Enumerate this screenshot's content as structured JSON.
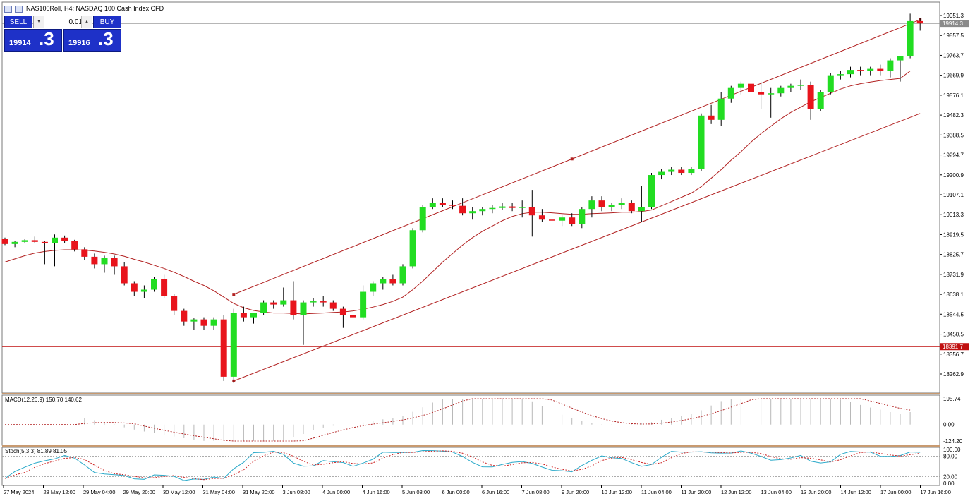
{
  "window": {
    "title": "NAS100Roll, H4:  NASDAQ 100 Cash Index CFD",
    "icons": [
      "chart-window-icon",
      "chart-grid-icon"
    ]
  },
  "trade_panel": {
    "sell_label": "SELL",
    "buy_label": "BUY",
    "lot_value": "0.01",
    "dec_glyph": "▾",
    "inc_glyph": "▴",
    "sell_price_main": "19914",
    "sell_price_big": ".3",
    "buy_price_main": "19916",
    "buy_price_big": ".3",
    "panel_color": "#1e31c8"
  },
  "price_axis": {
    "labels": [
      "19951.3",
      "19857.5",
      "19763.7",
      "19669.9",
      "19576.1",
      "19482.3",
      "19388.5",
      "19294.7",
      "19200.9",
      "19107.1",
      "19013.3",
      "18919.5",
      "18825.7",
      "18731.9",
      "18638.1",
      "18544.5",
      "18450.5",
      "18356.7",
      "18262.9"
    ],
    "current_price": "19914.3",
    "hline_price": "18391.7"
  },
  "time_axis": {
    "labels": [
      "27 May 2024",
      "28 May 12:00",
      "29 May 04:00",
      "29 May 20:00",
      "30 May 12:00",
      "31 May 04:00",
      "31 May 20:00",
      "3 Jun 08:00",
      "4 Jun 00:00",
      "4 Jun 16:00",
      "5 Jun 08:00",
      "6 Jun 00:00",
      "6 Jun 16:00",
      "7 Jun 08:00",
      "9 Jun 20:00",
      "10 Jun 12:00",
      "11 Jun 04:00",
      "11 Jun 20:00",
      "12 Jun 12:00",
      "13 Jun 04:00",
      "13 Jun 20:00",
      "14 Jun 12:00",
      "17 Jun 00:00",
      "17 Jun 16:00"
    ]
  },
  "macd": {
    "label": "MACD(12,26,9) 150.70 140.62",
    "scale_labels": [
      "195.74",
      "0.00",
      "-124.20"
    ]
  },
  "stoch": {
    "label": "Stoch(5,3,3) 81.89 81.05",
    "scale_labels": [
      "100.00",
      "80.00",
      "20.00",
      "0.00"
    ]
  },
  "colors": {
    "bull": "#22dd22",
    "bear": "#e8141c",
    "ma": "#b22222",
    "channel": "#b22222",
    "stoch_main": "#2aa9c9",
    "stoch_signal": "#cc2222",
    "macd_signal": "#b22222",
    "hist": "#b8b8b8"
  },
  "chart_data": {
    "type": "candlestick",
    "symbol": "NAS100Roll",
    "timeframe": "H4",
    "candles": [
      [
        18900,
        18905,
        18870,
        18875
      ],
      [
        18875,
        18890,
        18860,
        18885
      ],
      [
        18885,
        18900,
        18880,
        18893
      ],
      [
        18893,
        18910,
        18880,
        18885
      ],
      [
        18885,
        18890,
        18780,
        18880
      ],
      [
        18880,
        18920,
        18770,
        18905
      ],
      [
        18905,
        18915,
        18880,
        18890
      ],
      [
        18890,
        18895,
        18840,
        18850
      ],
      [
        18850,
        18860,
        18800,
        18815
      ],
      [
        18815,
        18830,
        18760,
        18780
      ],
      [
        18780,
        18820,
        18740,
        18810
      ],
      [
        18810,
        18820,
        18730,
        18770
      ],
      [
        18770,
        18790,
        18680,
        18690
      ],
      [
        18690,
        18700,
        18630,
        18650
      ],
      [
        18650,
        18680,
        18620,
        18660
      ],
      [
        18660,
        18720,
        18650,
        18710
      ],
      [
        18710,
        18730,
        18620,
        18630
      ],
      [
        18630,
        18640,
        18540,
        18560
      ],
      [
        18560,
        18570,
        18490,
        18510
      ],
      [
        18510,
        18525,
        18470,
        18520
      ],
      [
        18520,
        18530,
        18470,
        18490
      ],
      [
        18490,
        18530,
        18470,
        18520
      ],
      [
        18520,
        18540,
        18230,
        18250
      ],
      [
        18250,
        18570,
        18220,
        18550
      ],
      [
        18550,
        18580,
        18510,
        18530
      ],
      [
        18530,
        18550,
        18500,
        18550
      ],
      [
        18550,
        18610,
        18540,
        18600
      ],
      [
        18600,
        18610,
        18570,
        18590
      ],
      [
        18590,
        18670,
        18580,
        18610
      ],
      [
        18610,
        18700,
        18520,
        18540
      ],
      [
        18540,
        18610,
        18400,
        18600
      ],
      [
        18600,
        18620,
        18580,
        18605
      ],
      [
        18605,
        18630,
        18580,
        18600
      ],
      [
        18600,
        18610,
        18560,
        18570
      ],
      [
        18570,
        18580,
        18480,
        18540
      ],
      [
        18540,
        18560,
        18510,
        18530
      ],
      [
        18530,
        18680,
        18520,
        18650
      ],
      [
        18650,
        18700,
        18630,
        18690
      ],
      [
        18690,
        18720,
        18660,
        18710
      ],
      [
        18710,
        18730,
        18680,
        18690
      ],
      [
        18690,
        18780,
        18680,
        18770
      ],
      [
        18770,
        18950,
        18760,
        18940
      ],
      [
        18940,
        19060,
        18930,
        19050
      ],
      [
        19050,
        19090,
        19040,
        19070
      ],
      [
        19070,
        19090,
        19050,
        19060
      ],
      [
        19060,
        19080,
        19040,
        19055
      ],
      [
        19055,
        19090,
        19010,
        19020
      ],
      [
        19020,
        19050,
        18990,
        19030
      ],
      [
        19030,
        19050,
        19010,
        19040
      ],
      [
        19040,
        19060,
        19020,
        19045
      ],
      [
        19045,
        19070,
        19035,
        19052
      ],
      [
        19052,
        19070,
        19030,
        19045
      ],
      [
        19045,
        19080,
        19000,
        19050
      ],
      [
        19050,
        19130,
        18910,
        19010
      ],
      [
        19010,
        19040,
        18980,
        18990
      ],
      [
        18990,
        19010,
        18970,
        18985
      ],
      [
        18985,
        19010,
        18960,
        19000
      ],
      [
        19000,
        19020,
        18960,
        18970
      ],
      [
        18970,
        19050,
        18950,
        19040
      ],
      [
        19040,
        19100,
        19000,
        19080
      ],
      [
        19080,
        19100,
        19030,
        19050
      ],
      [
        19050,
        19070,
        19030,
        19060
      ],
      [
        19060,
        19090,
        19040,
        19070
      ],
      [
        19070,
        19080,
        19020,
        19030
      ],
      [
        19030,
        19150,
        18980,
        19050
      ],
      [
        19050,
        19210,
        19040,
        19200
      ],
      [
        19200,
        19230,
        19180,
        19215
      ],
      [
        19215,
        19240,
        19200,
        19225
      ],
      [
        19225,
        19240,
        19200,
        19210
      ],
      [
        19210,
        19240,
        19200,
        19230
      ],
      [
        19230,
        19490,
        19220,
        19480
      ],
      [
        19480,
        19530,
        19440,
        19460
      ],
      [
        19460,
        19590,
        19430,
        19560
      ],
      [
        19560,
        19620,
        19540,
        19610
      ],
      [
        19610,
        19640,
        19580,
        19630
      ],
      [
        19630,
        19650,
        19560,
        19590
      ],
      [
        19590,
        19640,
        19510,
        19580
      ],
      [
        19580,
        19610,
        19470,
        19585
      ],
      [
        19585,
        19620,
        19570,
        19610
      ],
      [
        19610,
        19630,
        19590,
        19620
      ],
      [
        19620,
        19650,
        19600,
        19625
      ],
      [
        19625,
        19640,
        19460,
        19510
      ],
      [
        19510,
        19600,
        19500,
        19590
      ],
      [
        19590,
        19680,
        19580,
        19670
      ],
      [
        19670,
        19690,
        19650,
        19675
      ],
      [
        19675,
        19710,
        19660,
        19695
      ],
      [
        19695,
        19710,
        19670,
        19690
      ],
      [
        19690,
        19710,
        19670,
        19700
      ],
      [
        19700,
        19720,
        19670,
        19690
      ],
      [
        19690,
        19750,
        19660,
        19740
      ],
      [
        19740,
        19760,
        19640,
        19760
      ],
      [
        19760,
        19960,
        19750,
        19925
      ],
      [
        19925,
        19940,
        19880,
        19914
      ]
    ],
    "moving_average": [
      18790,
      18805,
      18820,
      18832,
      18840,
      18845,
      18848,
      18848,
      18846,
      18842,
      18836,
      18828,
      18817,
      18803,
      18790,
      18775,
      18760,
      18742,
      18722,
      18700,
      18680,
      18655,
      18625,
      18595,
      18575,
      18562,
      18555,
      18550,
      18550,
      18548,
      18546,
      18548,
      18550,
      18553,
      18555,
      18560,
      18568,
      18578,
      18590,
      18605,
      18625,
      18660,
      18700,
      18745,
      18790,
      18830,
      18870,
      18905,
      18935,
      18960,
      18985,
      19005,
      19018,
      19025,
      19025,
      19022,
      19018,
      19015,
      19015,
      19018,
      19020,
      19022,
      19025,
      19025,
      19028,
      19035,
      19055,
      19075,
      19095,
      19115,
      19145,
      19185,
      19225,
      19270,
      19310,
      19355,
      19395,
      19430,
      19465,
      19495,
      19520,
      19545,
      19565,
      19585,
      19605,
      19620,
      19630,
      19638,
      19645,
      19650,
      19655,
      19690
    ],
    "channel_upper": {
      "x1": 23,
      "y1": 18638,
      "x2": 92,
      "y2": 19932,
      "handles": [
        23,
        57,
        92
      ],
      "mid_price": 19294.7
    },
    "channel_lower": {
      "x1": 23,
      "y1": 18230,
      "x2": 92,
      "y2": 19490
    },
    "macd_hist_range": [
      -124.2,
      195.74
    ],
    "stoch_range": [
      0,
      100
    ]
  }
}
